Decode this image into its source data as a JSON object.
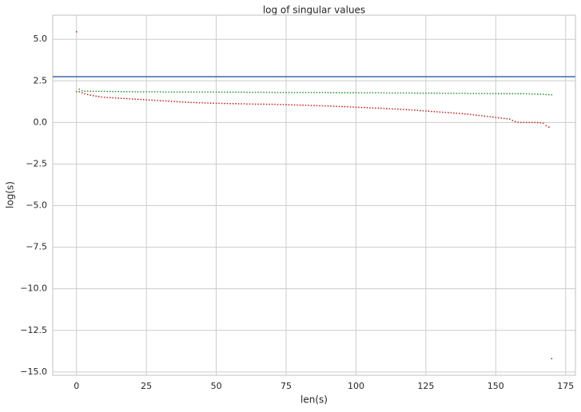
{
  "chart_data": {
    "type": "scatter",
    "title": "log of singular values",
    "x_label": "len(s)",
    "y_label": "log(s)",
    "x": [
      0,
      1,
      2,
      3,
      4,
      5,
      6,
      7,
      8,
      9,
      10,
      11,
      12,
      13,
      14,
      15,
      16,
      17,
      18,
      19,
      20,
      21,
      22,
      23,
      24,
      25,
      26,
      27,
      28,
      29,
      30,
      31,
      32,
      33,
      34,
      35,
      36,
      37,
      38,
      39,
      40,
      41,
      42,
      43,
      44,
      45,
      46,
      47,
      48,
      49,
      50,
      51,
      52,
      53,
      54,
      55,
      56,
      57,
      58,
      59,
      60,
      61,
      62,
      63,
      64,
      65,
      66,
      67,
      68,
      69,
      70,
      71,
      72,
      73,
      74,
      75,
      76,
      77,
      78,
      79,
      80,
      81,
      82,
      83,
      84,
      85,
      86,
      87,
      88,
      89,
      90,
      91,
      92,
      93,
      94,
      95,
      96,
      97,
      98,
      99,
      100,
      101,
      102,
      103,
      104,
      105,
      106,
      107,
      108,
      109,
      110,
      111,
      112,
      113,
      114,
      115,
      116,
      117,
      118,
      119,
      120,
      121,
      122,
      123,
      124,
      125,
      126,
      127,
      128,
      129,
      130,
      131,
      132,
      133,
      134,
      135,
      136,
      137,
      138,
      139,
      140,
      141,
      142,
      143,
      144,
      145,
      146,
      147,
      148,
      149,
      150,
      151,
      152,
      153,
      154,
      155,
      156,
      157,
      158,
      159,
      160,
      161,
      162,
      163,
      164,
      165,
      166,
      167,
      168,
      169,
      170
    ],
    "series": [
      {
        "color": "#cc2a2a",
        "values": [
          5.45,
          1.85,
          1.78,
          1.72,
          1.68,
          1.64,
          1.61,
          1.58,
          1.55,
          1.53,
          1.51,
          1.5,
          1.49,
          1.48,
          1.47,
          1.46,
          1.45,
          1.44,
          1.43,
          1.42,
          1.41,
          1.4,
          1.39,
          1.38,
          1.37,
          1.36,
          1.35,
          1.34,
          1.33,
          1.32,
          1.31,
          1.3,
          1.29,
          1.28,
          1.27,
          1.26,
          1.25,
          1.24,
          1.23,
          1.22,
          1.21,
          1.2,
          1.2,
          1.19,
          1.18,
          1.18,
          1.17,
          1.17,
          1.16,
          1.16,
          1.15,
          1.15,
          1.14,
          1.14,
          1.14,
          1.13,
          1.13,
          1.13,
          1.12,
          1.12,
          1.12,
          1.11,
          1.11,
          1.11,
          1.1,
          1.1,
          1.1,
          1.1,
          1.09,
          1.09,
          1.09,
          1.09,
          1.08,
          1.08,
          1.08,
          1.07,
          1.06,
          1.06,
          1.05,
          1.05,
          1.04,
          1.04,
          1.03,
          1.03,
          1.02,
          1.02,
          1.01,
          1.0,
          1.0,
          0.99,
          0.99,
          0.98,
          0.97,
          0.97,
          0.96,
          0.95,
          0.95,
          0.94,
          0.93,
          0.93,
          0.92,
          0.91,
          0.9,
          0.9,
          0.89,
          0.88,
          0.87,
          0.86,
          0.86,
          0.85,
          0.84,
          0.83,
          0.82,
          0.81,
          0.81,
          0.8,
          0.79,
          0.78,
          0.77,
          0.76,
          0.75,
          0.74,
          0.73,
          0.71,
          0.7,
          0.69,
          0.68,
          0.66,
          0.65,
          0.64,
          0.63,
          0.61,
          0.6,
          0.59,
          0.58,
          0.56,
          0.55,
          0.54,
          0.53,
          0.51,
          0.5,
          0.48,
          0.46,
          0.44,
          0.42,
          0.4,
          0.38,
          0.36,
          0.34,
          0.32,
          0.3,
          0.28,
          0.26,
          0.24,
          0.22,
          0.2,
          0.12,
          0.05,
          0.01,
          0.0,
          0.0,
          0.0,
          0.0,
          0.0,
          0.0,
          -0.01,
          -0.02,
          -0.05,
          -0.2,
          -0.28,
          -14.2
        ]
      },
      {
        "color": "#2e9a3a",
        "values": [
          1.85,
          2.0,
          1.9,
          1.88,
          1.88,
          1.88,
          1.87,
          1.87,
          1.87,
          1.87,
          1.87,
          1.86,
          1.86,
          1.86,
          1.86,
          1.86,
          1.85,
          1.85,
          1.85,
          1.85,
          1.85,
          1.84,
          1.84,
          1.84,
          1.84,
          1.84,
          1.84,
          1.84,
          1.84,
          1.84,
          1.84,
          1.83,
          1.83,
          1.83,
          1.83,
          1.83,
          1.83,
          1.83,
          1.83,
          1.83,
          1.83,
          1.83,
          1.83,
          1.83,
          1.83,
          1.83,
          1.83,
          1.83,
          1.83,
          1.83,
          1.83,
          1.82,
          1.82,
          1.82,
          1.82,
          1.82,
          1.82,
          1.82,
          1.82,
          1.82,
          1.82,
          1.81,
          1.81,
          1.81,
          1.81,
          1.81,
          1.81,
          1.81,
          1.81,
          1.81,
          1.81,
          1.8,
          1.8,
          1.8,
          1.8,
          1.8,
          1.8,
          1.8,
          1.8,
          1.8,
          1.8,
          1.8,
          1.8,
          1.8,
          1.8,
          1.8,
          1.8,
          1.8,
          1.8,
          1.8,
          1.8,
          1.79,
          1.79,
          1.79,
          1.79,
          1.79,
          1.79,
          1.79,
          1.79,
          1.79,
          1.79,
          1.78,
          1.78,
          1.78,
          1.78,
          1.78,
          1.78,
          1.78,
          1.78,
          1.78,
          1.78,
          1.77,
          1.77,
          1.77,
          1.77,
          1.77,
          1.77,
          1.77,
          1.77,
          1.77,
          1.77,
          1.76,
          1.76,
          1.76,
          1.76,
          1.76,
          1.76,
          1.76,
          1.76,
          1.76,
          1.76,
          1.75,
          1.75,
          1.75,
          1.75,
          1.75,
          1.75,
          1.75,
          1.75,
          1.75,
          1.75,
          1.74,
          1.74,
          1.74,
          1.74,
          1.74,
          1.74,
          1.74,
          1.74,
          1.74,
          1.74,
          1.73,
          1.73,
          1.73,
          1.73,
          1.73,
          1.73,
          1.73,
          1.73,
          1.73,
          1.73,
          1.72,
          1.72,
          1.71,
          1.71,
          1.7,
          1.7,
          1.69,
          1.68,
          1.67,
          1.66
        ]
      }
    ],
    "hline": {
      "value": 2.75,
      "color": "#4c72b0"
    },
    "xlim": [
      -8.5,
      178.5
    ],
    "xticks": [
      0,
      25,
      50,
      75,
      100,
      125,
      150,
      175
    ],
    "ylim": [
      -15.2,
      6.45
    ],
    "yticks": [
      {
        "value": -15,
        "label": "−15.0"
      },
      {
        "value": -12.5,
        "label": "−12.5"
      },
      {
        "value": -10,
        "label": "−10.0"
      },
      {
        "value": -7.5,
        "label": "−7.5"
      },
      {
        "value": -5,
        "label": "−5.0"
      },
      {
        "value": -2.5,
        "label": "−2.5"
      },
      {
        "value": 0,
        "label": "0.0"
      },
      {
        "value": 2.5,
        "label": "2.5"
      },
      {
        "value": 5,
        "label": "5.0"
      }
    ],
    "grid": true
  }
}
